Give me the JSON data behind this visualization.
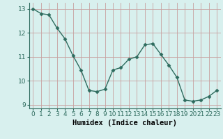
{
  "x": [
    0,
    1,
    2,
    3,
    4,
    5,
    6,
    7,
    8,
    9,
    10,
    11,
    12,
    13,
    14,
    15,
    16,
    17,
    18,
    19,
    20,
    21,
    22,
    23
  ],
  "y": [
    13.0,
    12.8,
    12.75,
    12.2,
    11.75,
    11.05,
    10.45,
    9.6,
    9.55,
    9.65,
    10.45,
    10.55,
    10.9,
    11.0,
    11.5,
    11.55,
    11.1,
    10.65,
    10.15,
    9.2,
    9.15,
    9.2,
    9.35,
    9.6
  ],
  "line_color": "#2e6b5e",
  "marker": "D",
  "marker_size": 2.5,
  "bg_color": "#d8f0ee",
  "grid_color_major": "#c8a0a0",
  "grid_color_minor": "#d4bcbc",
  "xlabel": "Humidex (Indice chaleur)",
  "ylim": [
    8.85,
    13.25
  ],
  "xlim": [
    -0.5,
    23.5
  ],
  "yticks": [
    9,
    10,
    11,
    12,
    13
  ],
  "xticks": [
    0,
    1,
    2,
    3,
    4,
    5,
    6,
    7,
    8,
    9,
    10,
    11,
    12,
    13,
    14,
    15,
    16,
    17,
    18,
    19,
    20,
    21,
    22,
    23
  ],
  "tick_fontsize": 6.5,
  "xlabel_fontsize": 7.5,
  "line_width": 1.0
}
